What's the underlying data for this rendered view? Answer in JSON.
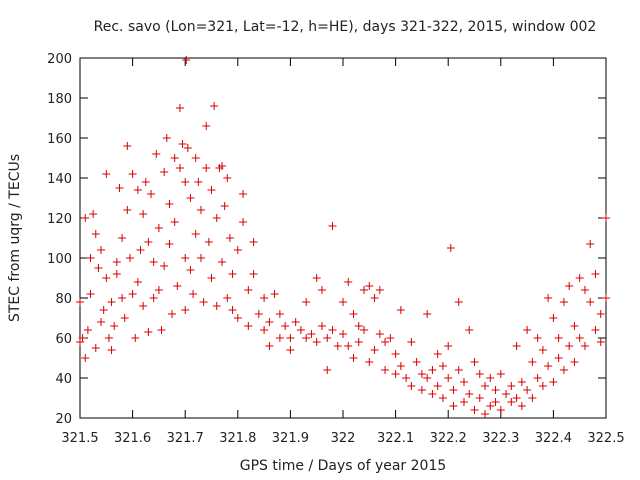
{
  "chart_data": {
    "type": "scatter",
    "title": "Rec. savo (Lon=321, Lat=-12, h=HE), days 321-322, 2015, window 002",
    "xlabel": "GPS time / Days of year 2015",
    "ylabel": "STEC from uqrg / TECUs",
    "xlim": [
      321.5,
      322.5
    ],
    "ylim": [
      20,
      200
    ],
    "xticks": [
      321.5,
      321.6,
      321.7,
      321.8,
      321.9,
      322,
      322.1,
      322.2,
      322.3,
      322.4,
      322.5
    ],
    "xtick_labels": [
      "321.5",
      "321.6",
      "321.7",
      "321.8",
      "321.9",
      "322",
      "322.1",
      "322.2",
      "322.3",
      "322.4",
      "322.5"
    ],
    "yticks": [
      20,
      40,
      60,
      80,
      100,
      120,
      140,
      160,
      180,
      200
    ],
    "ytick_labels": [
      "20",
      "40",
      "60",
      "80",
      "100",
      "120",
      "140",
      "160",
      "180",
      "200"
    ],
    "marker": "+",
    "color": "#d40000",
    "series": [
      {
        "name": "STEC",
        "points": [
          [
            321.5,
            78
          ],
          [
            321.5,
            58
          ],
          [
            321.505,
            60
          ],
          [
            321.51,
            50
          ],
          [
            321.51,
            120
          ],
          [
            321.515,
            64
          ],
          [
            321.52,
            100
          ],
          [
            321.52,
            82
          ],
          [
            321.525,
            122
          ],
          [
            321.53,
            112
          ],
          [
            321.53,
            55
          ],
          [
            321.535,
            95
          ],
          [
            321.54,
            104
          ],
          [
            321.54,
            68
          ],
          [
            321.545,
            74
          ],
          [
            321.55,
            142
          ],
          [
            321.55,
            90
          ],
          [
            321.555,
            60
          ],
          [
            321.56,
            78
          ],
          [
            321.56,
            54
          ],
          [
            321.565,
            66
          ],
          [
            321.57,
            98
          ],
          [
            321.57,
            92
          ],
          [
            321.575,
            135
          ],
          [
            321.58,
            110
          ],
          [
            321.58,
            80
          ],
          [
            321.585,
            70
          ],
          [
            321.59,
            156
          ],
          [
            321.59,
            124
          ],
          [
            321.595,
            100
          ],
          [
            321.6,
            142
          ],
          [
            321.6,
            82
          ],
          [
            321.605,
            60
          ],
          [
            321.61,
            134
          ],
          [
            321.61,
            88
          ],
          [
            321.615,
            104
          ],
          [
            321.62,
            122
          ],
          [
            321.62,
            76
          ],
          [
            321.625,
            138
          ],
          [
            321.63,
            108
          ],
          [
            321.63,
            63
          ],
          [
            321.635,
            132
          ],
          [
            321.64,
            98
          ],
          [
            321.64,
            80
          ],
          [
            321.645,
            152
          ],
          [
            321.65,
            115
          ],
          [
            321.65,
            84
          ],
          [
            321.655,
            64
          ],
          [
            321.66,
            143
          ],
          [
            321.66,
            96
          ],
          [
            321.665,
            160
          ],
          [
            321.67,
            127
          ],
          [
            321.67,
            107
          ],
          [
            321.675,
            72
          ],
          [
            321.68,
            150
          ],
          [
            321.68,
            118
          ],
          [
            321.685,
            86
          ],
          [
            321.69,
            175
          ],
          [
            321.69,
            145
          ],
          [
            321.695,
            157
          ],
          [
            321.7,
            138
          ],
          [
            321.7,
            100
          ],
          [
            321.7,
            74
          ],
          [
            321.702,
            199
          ],
          [
            321.705,
            155
          ],
          [
            321.71,
            130
          ],
          [
            321.71,
            94
          ],
          [
            321.715,
            82
          ],
          [
            321.72,
            150
          ],
          [
            321.72,
            112
          ],
          [
            321.725,
            138
          ],
          [
            321.73,
            124
          ],
          [
            321.73,
            100
          ],
          [
            321.735,
            78
          ],
          [
            321.74,
            166
          ],
          [
            321.74,
            145
          ],
          [
            321.745,
            108
          ],
          [
            321.75,
            134
          ],
          [
            321.75,
            90
          ],
          [
            321.755,
            176
          ],
          [
            321.76,
            120
          ],
          [
            321.76,
            76
          ],
          [
            321.765,
            145
          ],
          [
            321.77,
            146
          ],
          [
            321.77,
            98
          ],
          [
            321.775,
            126
          ],
          [
            321.78,
            140
          ],
          [
            321.78,
            80
          ],
          [
            321.785,
            110
          ],
          [
            321.79,
            92
          ],
          [
            321.79,
            74
          ],
          [
            321.8,
            104
          ],
          [
            321.8,
            70
          ],
          [
            321.81,
            132
          ],
          [
            321.81,
            118
          ],
          [
            321.82,
            84
          ],
          [
            321.82,
            66
          ],
          [
            321.83,
            108
          ],
          [
            321.83,
            92
          ],
          [
            321.84,
            72
          ],
          [
            321.85,
            80
          ],
          [
            321.85,
            64
          ],
          [
            321.86,
            68
          ],
          [
            321.86,
            56
          ],
          [
            321.87,
            82
          ],
          [
            321.88,
            72
          ],
          [
            321.88,
            60
          ],
          [
            321.89,
            66
          ],
          [
            321.9,
            60
          ],
          [
            321.9,
            54
          ],
          [
            321.91,
            68
          ],
          [
            321.92,
            64
          ],
          [
            321.93,
            78
          ],
          [
            321.93,
            60
          ],
          [
            321.94,
            62
          ],
          [
            321.95,
            90
          ],
          [
            321.95,
            58
          ],
          [
            321.96,
            84
          ],
          [
            321.96,
            66
          ],
          [
            321.97,
            44
          ],
          [
            321.97,
            60
          ],
          [
            321.98,
            116
          ],
          [
            321.98,
            64
          ],
          [
            321.99,
            56
          ],
          [
            322,
            78
          ],
          [
            322,
            62
          ],
          [
            322.01,
            88
          ],
          [
            322.01,
            56
          ],
          [
            322.02,
            72
          ],
          [
            322.02,
            50
          ],
          [
            322.03,
            66
          ],
          [
            322.03,
            58
          ],
          [
            322.04,
            84
          ],
          [
            322.04,
            64
          ],
          [
            322.05,
            86
          ],
          [
            322.05,
            48
          ],
          [
            322.06,
            80
          ],
          [
            322.06,
            54
          ],
          [
            322.07,
            84
          ],
          [
            322.07,
            62
          ],
          [
            322.08,
            58
          ],
          [
            322.08,
            44
          ],
          [
            322.09,
            60
          ],
          [
            322.1,
            52
          ],
          [
            322.1,
            42
          ],
          [
            322.11,
            74
          ],
          [
            322.11,
            46
          ],
          [
            322.12,
            40
          ],
          [
            322.13,
            58
          ],
          [
            322.13,
            36
          ],
          [
            322.14,
            48
          ],
          [
            322.15,
            42
          ],
          [
            322.15,
            34
          ],
          [
            322.16,
            72
          ],
          [
            322.16,
            40
          ],
          [
            322.17,
            44
          ],
          [
            322.17,
            32
          ],
          [
            322.18,
            52
          ],
          [
            322.18,
            36
          ],
          [
            322.19,
            46
          ],
          [
            322.19,
            30
          ],
          [
            322.2,
            56
          ],
          [
            322.2,
            40
          ],
          [
            322.205,
            105
          ],
          [
            322.21,
            34
          ],
          [
            322.21,
            26
          ],
          [
            322.22,
            78
          ],
          [
            322.22,
            44
          ],
          [
            322.23,
            38
          ],
          [
            322.23,
            28
          ],
          [
            322.24,
            64
          ],
          [
            322.24,
            32
          ],
          [
            322.25,
            48
          ],
          [
            322.25,
            24
          ],
          [
            322.26,
            42
          ],
          [
            322.26,
            30
          ],
          [
            322.27,
            36
          ],
          [
            322.27,
            22
          ],
          [
            322.28,
            40
          ],
          [
            322.28,
            26
          ],
          [
            322.29,
            34
          ],
          [
            322.29,
            28
          ],
          [
            322.3,
            42
          ],
          [
            322.3,
            24
          ],
          [
            322.31,
            32
          ],
          [
            322.32,
            36
          ],
          [
            322.32,
            28
          ],
          [
            322.33,
            56
          ],
          [
            322.33,
            30
          ],
          [
            322.34,
            38
          ],
          [
            322.34,
            26
          ],
          [
            322.35,
            64
          ],
          [
            322.35,
            34
          ],
          [
            322.36,
            48
          ],
          [
            322.36,
            30
          ],
          [
            322.37,
            60
          ],
          [
            322.37,
            40
          ],
          [
            322.38,
            54
          ],
          [
            322.38,
            36
          ],
          [
            322.39,
            80
          ],
          [
            322.39,
            46
          ],
          [
            322.4,
            70
          ],
          [
            322.4,
            38
          ],
          [
            322.41,
            60
          ],
          [
            322.41,
            50
          ],
          [
            322.42,
            78
          ],
          [
            322.42,
            44
          ],
          [
            322.43,
            86
          ],
          [
            322.43,
            56
          ],
          [
            322.44,
            66
          ],
          [
            322.44,
            48
          ],
          [
            322.45,
            90
          ],
          [
            322.45,
            60
          ],
          [
            322.46,
            84
          ],
          [
            322.46,
            56
          ],
          [
            322.47,
            107
          ],
          [
            322.47,
            78
          ],
          [
            322.48,
            92
          ],
          [
            322.48,
            64
          ],
          [
            322.49,
            72
          ],
          [
            322.49,
            58
          ],
          [
            322.5,
            120
          ],
          [
            322.5,
            80
          ]
        ]
      }
    ]
  }
}
